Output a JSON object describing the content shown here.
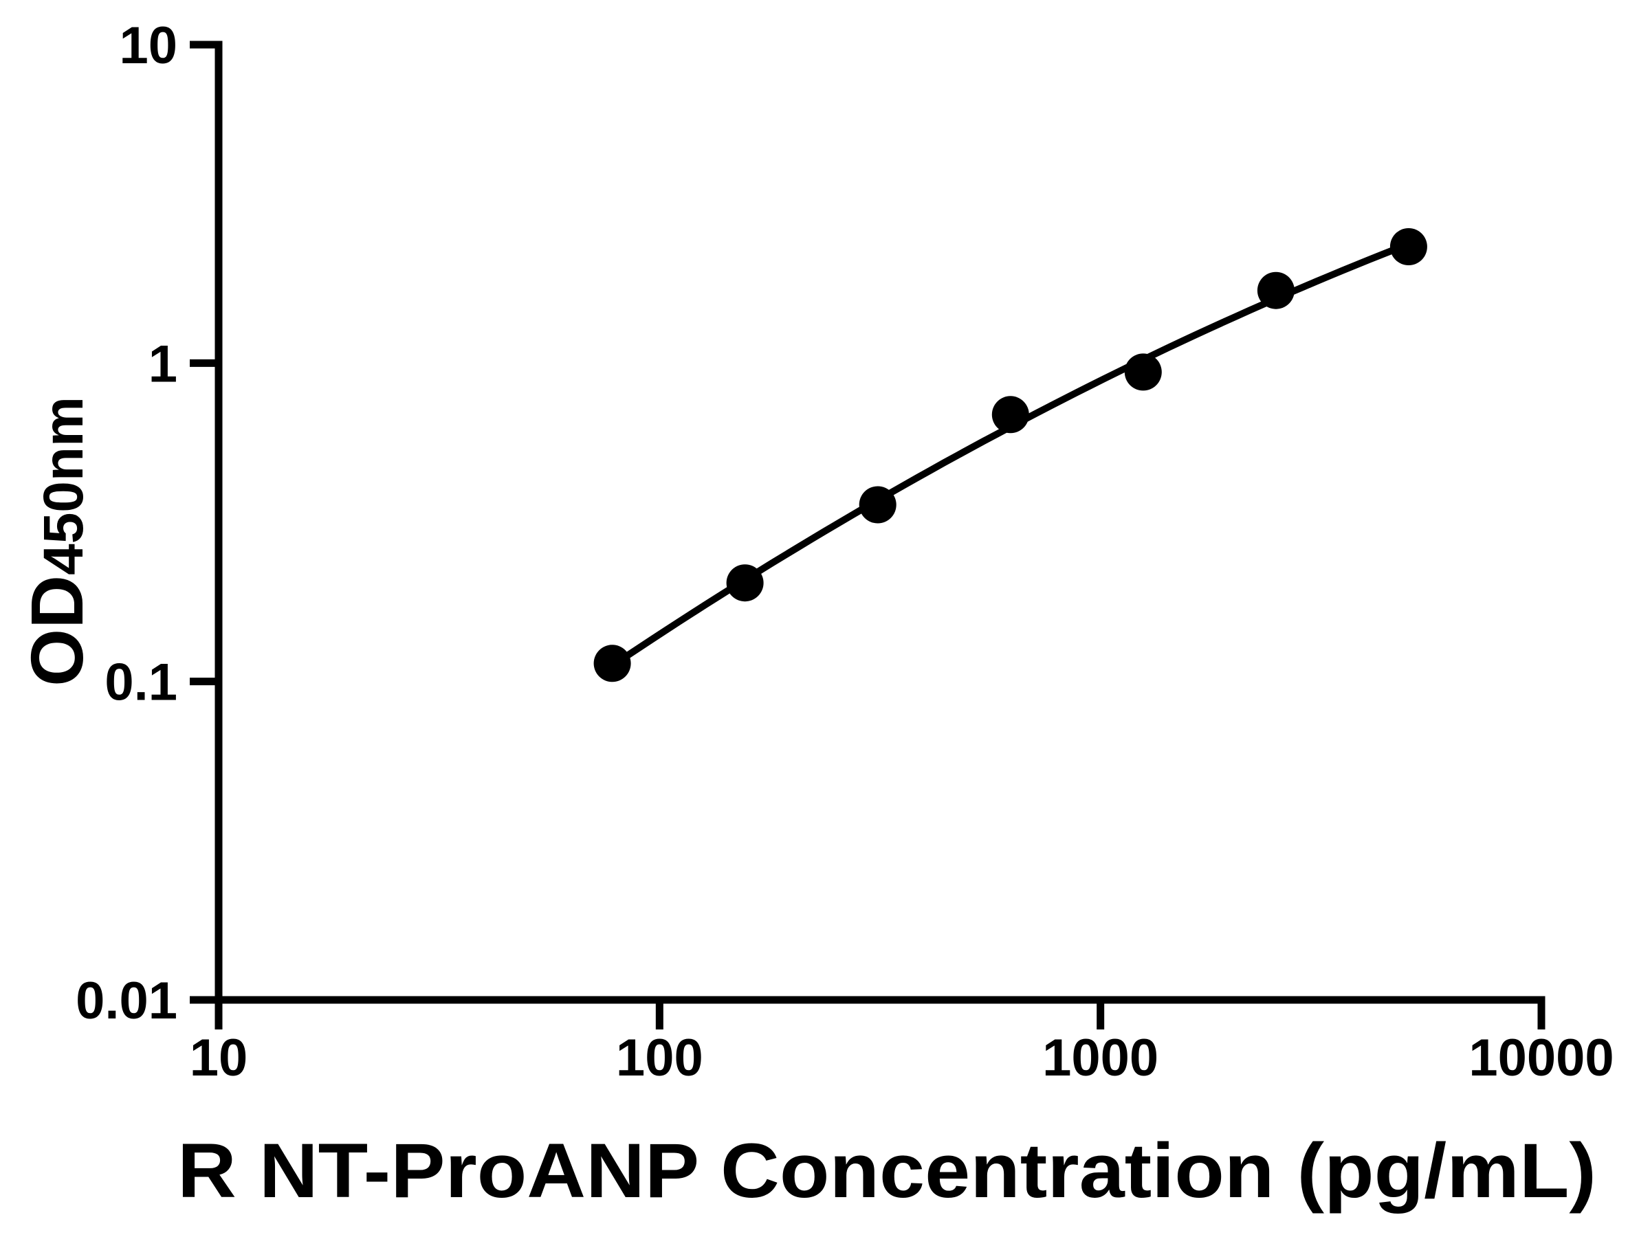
{
  "chart_data": {
    "type": "scatter",
    "title": "",
    "xlabel": "R NT-ProANP Concentration (pg/mL)",
    "ylabel": "OD450nm",
    "ylabel_main": "OD",
    "ylabel_sub": "450nm",
    "x_scale": "log10",
    "y_scale": "log10",
    "xlim": [
      10,
      10000
    ],
    "ylim": [
      0.01,
      10
    ],
    "x_tick_labels": [
      "10",
      "100",
      "1000",
      "10000"
    ],
    "y_tick_labels": [
      "10",
      "1",
      "0.1",
      "0.01"
    ],
    "grid": false,
    "legend_position": "none",
    "marker_color": "#000000",
    "line_color": "#000000",
    "background_color": "#ffffff",
    "series": [
      {
        "x": [
          78.125,
          156.25,
          312.5,
          625,
          1250,
          2500,
          5000
        ],
        "y": [
          0.114,
          0.204,
          0.359,
          0.689,
          0.937,
          1.69,
          2.32
        ]
      }
    ]
  }
}
